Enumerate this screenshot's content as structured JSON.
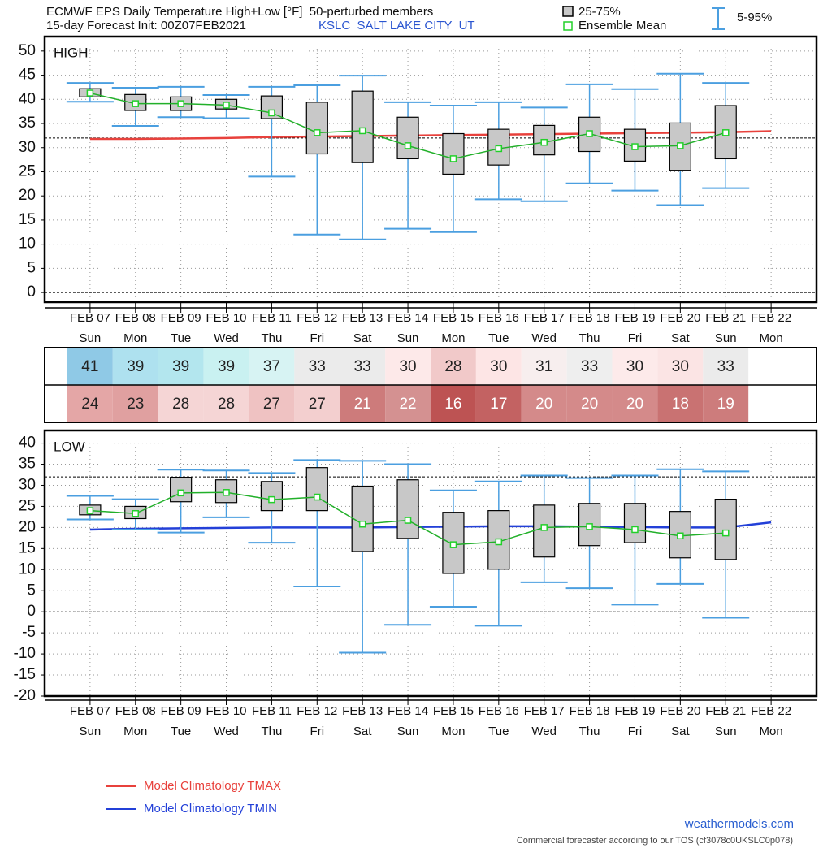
{
  "header": {
    "title": "ECMWF EPS Daily Temperature High+Low [°F]  50-perturbed members",
    "init": "15-day Forecast Init: 00Z07FEB2021",
    "station": "KSLC  SALT LAKE CITY  UT"
  },
  "legend": {
    "box": "25-75%",
    "mean": "Ensemble Mean",
    "whisker": "5-95%"
  },
  "footer": {
    "site": "weathermodels.com",
    "note": "Commercial forecaster according to our TOS (cf3078c0UKSLC0p078)"
  },
  "chart_data": [
    {
      "type": "box",
      "label": "HIGH",
      "categories": [
        "FEB 07",
        "FEB 08",
        "FEB 09",
        "FEB 10",
        "FEB 11",
        "FEB 12",
        "FEB 13",
        "FEB 14",
        "FEB 15",
        "FEB 16",
        "FEB 17",
        "FEB 18",
        "FEB 19",
        "FEB 20",
        "FEB 21",
        "FEB 22"
      ],
      "weekdays": [
        "Sun",
        "Mon",
        "Tue",
        "Wed",
        "Thu",
        "Fri",
        "Sat",
        "Sun",
        "Mon",
        "Tue",
        "Wed",
        "Thu",
        "Fri",
        "Sat",
        "Sun",
        "Mon"
      ],
      "q1": [
        40.5,
        37.7,
        37.7,
        38.0,
        36.0,
        28.7,
        26.9,
        27.7,
        24.5,
        26.4,
        28.5,
        29.2,
        27.2,
        25.3,
        27.7,
        null
      ],
      "q3": [
        42.2,
        41.0,
        40.5,
        40.0,
        40.7,
        39.4,
        41.7,
        36.3,
        32.9,
        33.8,
        34.6,
        36.3,
        33.8,
        35.1,
        38.7,
        null
      ],
      "p5": [
        39.5,
        34.5,
        36.3,
        36.1,
        24.0,
        12.0,
        11.0,
        13.2,
        12.5,
        19.3,
        18.9,
        22.6,
        21.1,
        18.1,
        21.6,
        null
      ],
      "p95": [
        43.4,
        42.4,
        42.6,
        40.9,
        42.6,
        42.9,
        44.9,
        39.4,
        38.7,
        39.4,
        38.3,
        43.1,
        42.1,
        45.3,
        43.4,
        null
      ],
      "mean": [
        41.3,
        39.1,
        39.1,
        38.8,
        37.2,
        33.1,
        33.5,
        30.4,
        27.7,
        29.8,
        31.1,
        32.9,
        30.2,
        30.4,
        33.1,
        null
      ],
      "climatology": {
        "name": "Model Climatology TMAX",
        "color": "#e8413c",
        "values": [
          31.8,
          31.8,
          31.9,
          32.0,
          32.2,
          32.3,
          32.4,
          32.5,
          32.6,
          32.7,
          32.8,
          32.9,
          33.0,
          33.1,
          33.2,
          33.4
        ]
      },
      "box_color": "#c8c8c8",
      "whisker_color": "#4b9fe0",
      "mean_color": "#22b02a",
      "ref_lines": [
        32,
        0
      ],
      "ylim": [
        -2,
        53
      ],
      "yticks": [
        0,
        5,
        10,
        15,
        20,
        25,
        30,
        35,
        40,
        45,
        50
      ],
      "grid": true
    },
    {
      "type": "box",
      "label": "LOW",
      "categories": [
        "FEB 07",
        "FEB 08",
        "FEB 09",
        "FEB 10",
        "FEB 11",
        "FEB 12",
        "FEB 13",
        "FEB 14",
        "FEB 15",
        "FEB 16",
        "FEB 17",
        "FEB 18",
        "FEB 19",
        "FEB 20",
        "FEB 21",
        "FEB 22"
      ],
      "weekdays": [
        "Sun",
        "Mon",
        "Tue",
        "Wed",
        "Thu",
        "Fri",
        "Sat",
        "Sun",
        "Mon",
        "Tue",
        "Wed",
        "Thu",
        "Fri",
        "Sat",
        "Sun",
        "Mon"
      ],
      "q1": [
        23.0,
        22.1,
        26.1,
        25.9,
        24.0,
        24.0,
        14.3,
        17.4,
        9.1,
        10.1,
        13.0,
        15.7,
        16.4,
        12.8,
        12.4,
        null
      ],
      "q3": [
        25.3,
        25.0,
        31.9,
        31.3,
        30.9,
        34.2,
        29.8,
        31.3,
        23.6,
        24.0,
        25.3,
        25.7,
        25.7,
        23.8,
        26.7,
        null
      ],
      "p5": [
        21.9,
        19.5,
        18.8,
        22.4,
        16.4,
        6.0,
        -9.7,
        -3.1,
        1.2,
        -3.3,
        7.0,
        5.6,
        1.7,
        6.6,
        -1.4,
        null
      ],
      "p95": [
        27.5,
        26.7,
        33.7,
        33.5,
        32.9,
        36.0,
        35.8,
        35.0,
        28.8,
        30.9,
        32.3,
        31.7,
        32.3,
        33.8,
        33.3,
        null
      ],
      "mean": [
        24.0,
        23.3,
        28.2,
        28.3,
        26.6,
        27.2,
        20.8,
        21.7,
        15.9,
        16.6,
        20.0,
        20.2,
        19.5,
        18.0,
        18.7,
        null
      ],
      "climatology": {
        "name": "Model Climatology TMIN",
        "color": "#2340d8",
        "values": [
          19.5,
          19.7,
          19.8,
          19.9,
          20.0,
          20.0,
          20.0,
          20.1,
          20.2,
          20.3,
          20.3,
          20.2,
          20.1,
          20.0,
          20.0,
          21.2
        ]
      },
      "box_color": "#c8c8c8",
      "whisker_color": "#4b9fe0",
      "mean_color": "#22b02a",
      "ref_lines": [
        32,
        0
      ],
      "ylim": [
        -20,
        43
      ],
      "yticks": [
        -20,
        -15,
        -10,
        -5,
        0,
        5,
        10,
        15,
        20,
        25,
        30,
        35,
        40
      ],
      "grid": true
    }
  ],
  "table": {
    "rows": [
      [
        41,
        39,
        39,
        39,
        37,
        33,
        33,
        30,
        28,
        30,
        31,
        33,
        30,
        30,
        33
      ],
      [
        24,
        23,
        28,
        28,
        27,
        27,
        21,
        22,
        16,
        17,
        20,
        20,
        20,
        18,
        19
      ]
    ],
    "colors": [
      [
        "#8fc9e6",
        "#aee1ef",
        "#b3e6ee",
        "#c9f1f1",
        "#d7f3f3",
        "#ebebeb",
        "#ebebeb",
        "#fde9e9",
        "#f1c9c9",
        "#fde5e5",
        "#f7eeee",
        "#eeeeee",
        "#fdeaea",
        "#fbe4e4",
        "#ebebeb"
      ],
      [
        "#e4a6a6",
        "#e0a0a0",
        "#f5d5d5",
        "#f5d5d5",
        "#efc2c2",
        "#f3cfcf",
        "#cd7b7b",
        "#d49191",
        "#bd5353",
        "#c36262",
        "#d48a8a",
        "#d48a8a",
        "#d48a8a",
        "#c97272",
        "#cd7c7c"
      ]
    ]
  }
}
